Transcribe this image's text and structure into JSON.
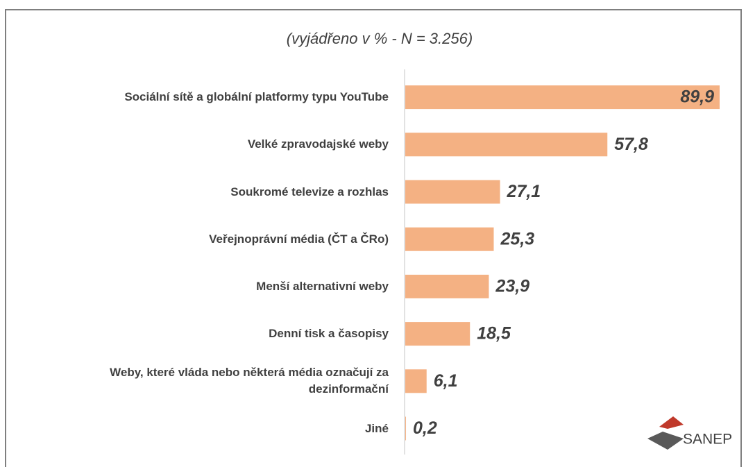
{
  "chart_data": {
    "type": "bar",
    "orientation": "horizontal",
    "subtitle": "(vyjádřeno v % - N = 3.256)",
    "categories": [
      "Sociální sítě a globální platformy typu YouTube",
      "Velké zpravodajské weby",
      "Soukromé televize a rozhlas",
      "Veřejnoprávní média (ČT a ČRo)",
      "Menší alternativní weby",
      "Denní tisk a časopisy",
      "Weby, které vláda nebo některá média označují za dezinformační",
      "Jiné"
    ],
    "values": [
      89.9,
      57.8,
      27.1,
      25.3,
      23.9,
      18.5,
      6.1,
      0.2
    ],
    "value_labels": [
      "89,9",
      "57,8",
      "27,1",
      "25,3",
      "23,9",
      "18,5",
      "6,1",
      "0,2"
    ],
    "color": "#f4b183",
    "logo": "SANEP"
  }
}
